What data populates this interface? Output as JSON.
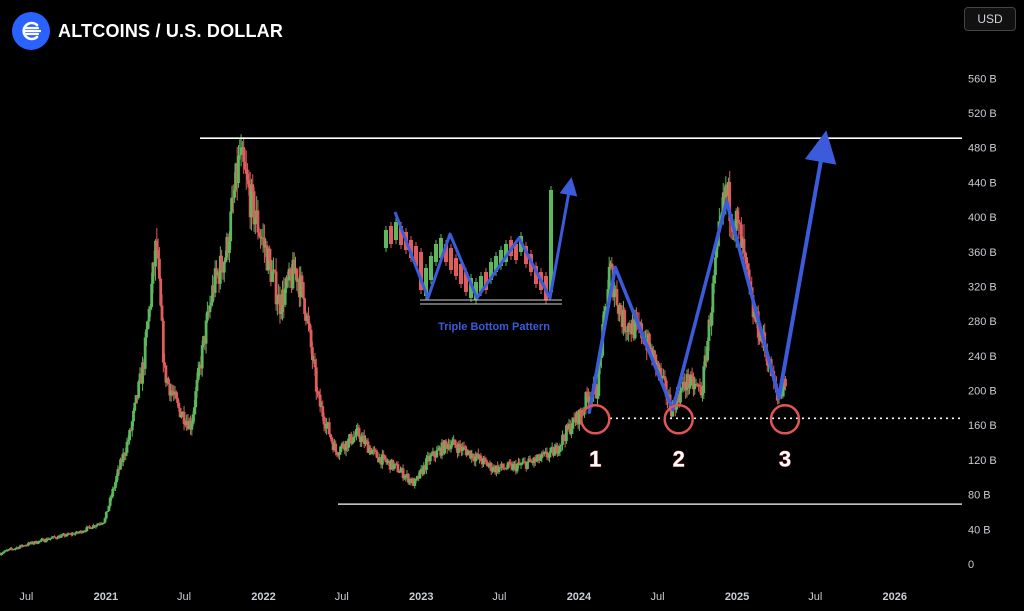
{
  "header": {
    "title": "ALTCOINS / U.S. DOLLAR",
    "currency_button": "USD"
  },
  "colors": {
    "up": "#5cb85c",
    "down": "#e05d5d",
    "accent": "#3b5bdb",
    "marker": "#e05555"
  },
  "chart_data": {
    "type": "candlestick",
    "title": "ALTCOINS / U.S. DOLLAR",
    "y_unit": "B",
    "ylim": [
      0,
      580
    ],
    "xlim": [
      "2020-05-01",
      "2026-06-01"
    ],
    "y_ticks": [
      "560 B",
      "520 B",
      "480 B",
      "440 B",
      "400 B",
      "360 B",
      "320 B",
      "280 B",
      "240 B",
      "200 B",
      "160 B",
      "120 B",
      "80 B",
      "40 B",
      "0"
    ],
    "x_ticks": [
      {
        "label": "Jul",
        "date": "2020-07-01"
      },
      {
        "label": "2021",
        "date": "2021-01-01"
      },
      {
        "label": "Jul",
        "date": "2021-07-01"
      },
      {
        "label": "2022",
        "date": "2022-01-01"
      },
      {
        "label": "Jul",
        "date": "2022-07-01"
      },
      {
        "label": "2023",
        "date": "2023-01-01"
      },
      {
        "label": "Jul",
        "date": "2023-07-01"
      },
      {
        "label": "2024",
        "date": "2024-01-01"
      },
      {
        "label": "Jul",
        "date": "2024-07-01"
      },
      {
        "label": "2025",
        "date": "2025-01-01"
      },
      {
        "label": "Jul",
        "date": "2025-07-01"
      },
      {
        "label": "2026",
        "date": "2026-01-01"
      }
    ],
    "price_path": [
      [
        "2020-05-01",
        12
      ],
      [
        "2020-07-01",
        22
      ],
      [
        "2020-09-01",
        30
      ],
      [
        "2020-11-01",
        36
      ],
      [
        "2021-01-01",
        50
      ],
      [
        "2021-02-01",
        105
      ],
      [
        "2021-03-01",
        150
      ],
      [
        "2021-04-01",
        230
      ],
      [
        "2021-05-01",
        370
      ],
      [
        "2021-05-20",
        220
      ],
      [
        "2021-06-20",
        180
      ],
      [
        "2021-07-20",
        160
      ],
      [
        "2021-08-20",
        260
      ],
      [
        "2021-09-10",
        320
      ],
      [
        "2021-10-10",
        360
      ],
      [
        "2021-11-10",
        470
      ],
      [
        "2021-12-10",
        410
      ],
      [
        "2022-01-10",
        360
      ],
      [
        "2022-02-10",
        300
      ],
      [
        "2022-03-20",
        340
      ],
      [
        "2022-04-10",
        300
      ],
      [
        "2022-05-10",
        190
      ],
      [
        "2022-06-20",
        130
      ],
      [
        "2022-08-10",
        150
      ],
      [
        "2022-09-20",
        125
      ],
      [
        "2022-11-10",
        110
      ],
      [
        "2022-12-20",
        92
      ],
      [
        "2023-01-20",
        120
      ],
      [
        "2023-03-10",
        140
      ],
      [
        "2023-04-20",
        130
      ],
      [
        "2023-06-20",
        110
      ],
      [
        "2023-08-10",
        112
      ],
      [
        "2023-10-01",
        120
      ],
      [
        "2023-11-10",
        130
      ],
      [
        "2023-12-10",
        155
      ],
      [
        "2024-01-10",
        175
      ],
      [
        "2024-01-25",
        195
      ],
      [
        "2024-02-15",
        200
      ],
      [
        "2024-03-15",
        340
      ],
      [
        "2024-04-15",
        280
      ],
      [
        "2024-06-01",
        265
      ],
      [
        "2024-07-01",
        230
      ],
      [
        "2024-08-05",
        180
      ],
      [
        "2024-09-10",
        210
      ],
      [
        "2024-10-15",
        200
      ],
      [
        "2024-11-15",
        340
      ],
      [
        "2024-12-08",
        430
      ],
      [
        "2025-01-10",
        380
      ],
      [
        "2025-02-10",
        290
      ],
      [
        "2025-03-10",
        250
      ],
      [
        "2025-04-08",
        190
      ],
      [
        "2025-04-25",
        210
      ]
    ],
    "annotations": {
      "resistance_level": 491,
      "support_level": 168,
      "base_level": 69,
      "triple_bottom_lows": [
        {
          "label": "1",
          "date": "2024-01-25",
          "value": 168
        },
        {
          "label": "2",
          "date": "2024-08-05",
          "value": 168
        },
        {
          "label": "3",
          "date": "2025-04-08",
          "value": 168
        }
      ],
      "projection": [
        [
          "2025-04-08",
          192
        ],
        [
          "2025-07-20",
          491
        ]
      ],
      "inset_label": "Triple Bottom Pattern"
    }
  }
}
